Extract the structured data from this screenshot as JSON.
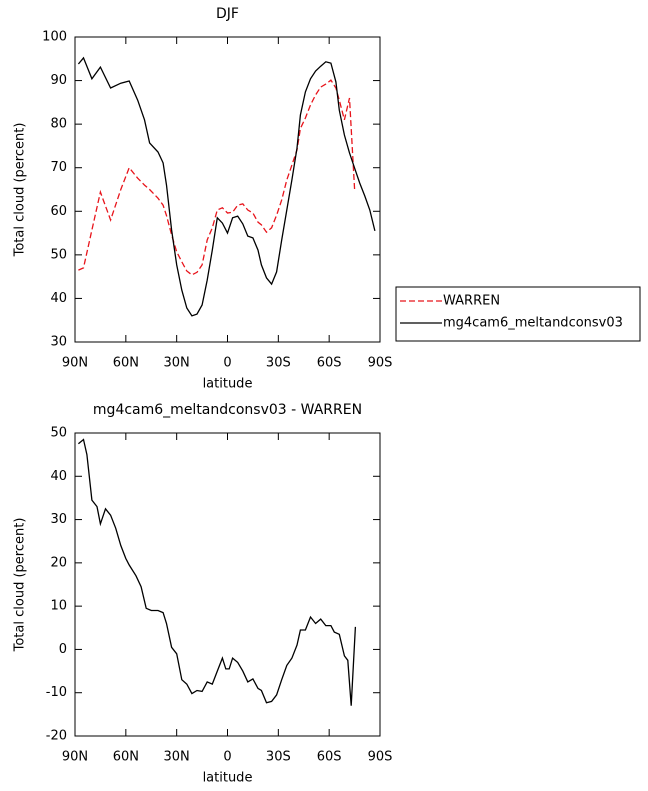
{
  "chart_data": [
    {
      "type": "line",
      "title": "DJF",
      "x_label": "latitude",
      "y_label": "Total cloud (percent)",
      "x": [
        88,
        85,
        80,
        75,
        69,
        63,
        58,
        53,
        49,
        46,
        41,
        38,
        36,
        33,
        30,
        27,
        24,
        21,
        18,
        15,
        12,
        9,
        6,
        3,
        0,
        -3,
        -6,
        -9,
        -12,
        -15,
        -18,
        -20,
        -23,
        -26,
        -29,
        -32,
        -35,
        -38,
        -41,
        -43,
        -46,
        -49,
        -52,
        -55,
        -58,
        -61,
        -64,
        -66,
        -69,
        -72,
        -75,
        -78,
        -81,
        -84,
        -87
      ],
      "series": [
        {
          "name": "WARREN",
          "color": "#e8141b",
          "line_style": "dashed",
          "values": [
            46.5,
            47,
            55.7,
            64.4,
            58,
            65,
            70,
            67.6,
            66,
            65,
            63,
            61.4,
            59,
            54.6,
            50.7,
            48.4,
            46.3,
            45.4,
            46,
            47.7,
            53.4,
            56.2,
            60.3,
            60.8,
            59.6,
            59.8,
            61.4,
            61.7,
            60.3,
            59.6,
            57.5,
            56.9,
            55.2,
            56.2,
            59.1,
            62.6,
            67.2,
            70.6,
            74.1,
            79,
            81.4,
            84.4,
            86.7,
            88.5,
            89.2,
            90.1,
            88.3,
            85.5,
            81,
            86,
            65,
            null,
            null,
            null,
            null
          ]
        },
        {
          "name": "mg4cam6_meltandconsv03",
          "color": "#000000",
          "line_style": "solid",
          "values": [
            93.8,
            95.2,
            90.4,
            93.1,
            88.3,
            89.4,
            89.9,
            85.5,
            81,
            75.7,
            73.6,
            71.1,
            66,
            55.7,
            47.7,
            41.9,
            37.8,
            36,
            36.4,
            38.5,
            44.2,
            51.1,
            58.5,
            57.3,
            55,
            58.5,
            58.9,
            57.1,
            54.3,
            53.9,
            51.1,
            47.7,
            44.7,
            43.3,
            46.1,
            53.4,
            60.3,
            67.2,
            74.5,
            82.1,
            87.4,
            90.4,
            92.2,
            93.3,
            94.3,
            94,
            89.7,
            83.2,
            77.5,
            73.4,
            69.9,
            66.5,
            63.5,
            60.3,
            55.5
          ]
        }
      ],
      "xlim": [
        90,
        -90
      ],
      "xticks": [
        {
          "value": 90,
          "label": "90N"
        },
        {
          "value": 60,
          "label": "60N"
        },
        {
          "value": 30,
          "label": "30N"
        },
        0,
        {
          "value": -30,
          "label": "30S"
        },
        {
          "value": -60,
          "label": "60S"
        },
        {
          "value": -90,
          "label": "90S"
        }
      ],
      "ylim": [
        30,
        100
      ],
      "yticks": [
        30,
        40,
        50,
        60,
        70,
        80,
        90,
        100
      ],
      "legend": "right"
    },
    {
      "type": "line",
      "title": "mg4cam6_meltandconsv03 - WARREN",
      "x_label": "latitude",
      "y_label": "Total cloud (percent)",
      "x": [
        88,
        85,
        83,
        80,
        77,
        75,
        72,
        69,
        66,
        63,
        60,
        58,
        54,
        51,
        48,
        45,
        41,
        38,
        36,
        33,
        30,
        27,
        24,
        21,
        18,
        15,
        12,
        9,
        6,
        3,
        1,
        -1,
        -3,
        -6,
        -9,
        -12,
        -15,
        -18,
        -20,
        -23,
        -26,
        -29,
        -32,
        -35,
        -38,
        -41,
        -43,
        -46,
        -49,
        -52,
        -55,
        -58,
        -61,
        -63,
        -66,
        -69,
        -71,
        -73,
        -75.5
      ],
      "series": [
        {
          "name": "mg4cam6_meltandconsv03 - WARREN",
          "color": "#000000",
          "line_style": "solid",
          "values": [
            47.5,
            48.5,
            45,
            34.5,
            33,
            29,
            32.5,
            31,
            28,
            24,
            21,
            19.5,
            17,
            14.5,
            9.5,
            9,
            9,
            8.5,
            6,
            0.5,
            -1,
            -7,
            -8,
            -10.2,
            -9.5,
            -9.7,
            -7.5,
            -8,
            -5,
            -2,
            -4.5,
            -4.5,
            -2,
            -3,
            -5,
            -7.5,
            -6.8,
            -9,
            -9.5,
            -12.3,
            -12,
            -10.5,
            -7,
            -3.7,
            -2,
            1,
            4.5,
            4.5,
            7.5,
            6,
            7,
            5.5,
            5.5,
            4,
            3.5,
            -1.5,
            -2.5,
            -13,
            5.2
          ]
        }
      ],
      "xlim": [
        90,
        -90
      ],
      "xticks": [
        {
          "value": 90,
          "label": "90N"
        },
        {
          "value": 60,
          "label": "60N"
        },
        {
          "value": 30,
          "label": "30N"
        },
        0,
        {
          "value": -30,
          "label": "30S"
        },
        {
          "value": -60,
          "label": "60S"
        },
        {
          "value": -90,
          "label": "90S"
        }
      ],
      "ylim": [
        -20,
        50
      ],
      "yticks": [
        -20,
        -10,
        0,
        10,
        20,
        30,
        40,
        50
      ]
    }
  ]
}
